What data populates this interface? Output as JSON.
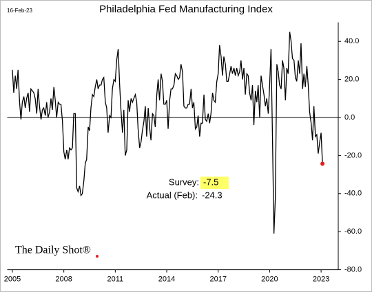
{
  "chart_data": {
    "type": "line",
    "title": "Philadelphia Fed Manufacturing Index",
    "date_label": "16-Feb-23",
    "source": "The Daily Shot®",
    "color": "#000000",
    "last_point_color": "#e02020",
    "survey": {
      "label": "Survey:",
      "value": -7.5,
      "highlight": "#ffff66"
    },
    "actual": {
      "label": "Actual (Feb):",
      "value": -24.3
    },
    "x": [
      2005.0,
      2005.08,
      2005.17,
      2005.25,
      2005.33,
      2005.42,
      2005.5,
      2005.58,
      2005.67,
      2005.75,
      2005.83,
      2005.92,
      2006.0,
      2006.08,
      2006.17,
      2006.25,
      2006.33,
      2006.42,
      2006.5,
      2006.58,
      2006.67,
      2006.75,
      2006.83,
      2006.92,
      2007.0,
      2007.08,
      2007.17,
      2007.25,
      2007.33,
      2007.42,
      2007.5,
      2007.58,
      2007.67,
      2007.75,
      2007.83,
      2007.92,
      2008.0,
      2008.08,
      2008.17,
      2008.25,
      2008.33,
      2008.42,
      2008.5,
      2008.58,
      2008.67,
      2008.75,
      2008.83,
      2008.92,
      2009.0,
      2009.08,
      2009.17,
      2009.25,
      2009.33,
      2009.42,
      2009.5,
      2009.58,
      2009.67,
      2009.75,
      2009.83,
      2009.92,
      2010.0,
      2010.08,
      2010.17,
      2010.25,
      2010.33,
      2010.42,
      2010.5,
      2010.58,
      2010.67,
      2010.75,
      2010.83,
      2010.92,
      2011.0,
      2011.08,
      2011.17,
      2011.25,
      2011.33,
      2011.42,
      2011.5,
      2011.58,
      2011.67,
      2011.75,
      2011.83,
      2011.92,
      2012.0,
      2012.08,
      2012.17,
      2012.25,
      2012.33,
      2012.42,
      2012.5,
      2012.58,
      2012.67,
      2012.75,
      2012.83,
      2012.92,
      2013.0,
      2013.08,
      2013.17,
      2013.25,
      2013.33,
      2013.42,
      2013.5,
      2013.58,
      2013.67,
      2013.75,
      2013.83,
      2013.92,
      2014.0,
      2014.08,
      2014.17,
      2014.25,
      2014.33,
      2014.42,
      2014.5,
      2014.58,
      2014.67,
      2014.75,
      2014.83,
      2014.92,
      2015.0,
      2015.08,
      2015.17,
      2015.25,
      2015.33,
      2015.42,
      2015.5,
      2015.58,
      2015.67,
      2015.75,
      2015.83,
      2015.92,
      2016.0,
      2016.08,
      2016.17,
      2016.25,
      2016.33,
      2016.42,
      2016.5,
      2016.58,
      2016.67,
      2016.75,
      2016.83,
      2016.92,
      2017.0,
      2017.08,
      2017.17,
      2017.25,
      2017.33,
      2017.42,
      2017.5,
      2017.58,
      2017.67,
      2017.75,
      2017.83,
      2017.92,
      2018.0,
      2018.08,
      2018.17,
      2018.25,
      2018.33,
      2018.42,
      2018.5,
      2018.58,
      2018.67,
      2018.75,
      2018.83,
      2018.92,
      2019.0,
      2019.08,
      2019.17,
      2019.25,
      2019.33,
      2019.42,
      2019.5,
      2019.58,
      2019.67,
      2019.75,
      2019.83,
      2019.92,
      2020.0,
      2020.08,
      2020.17,
      2020.25,
      2020.33,
      2020.42,
      2020.5,
      2020.58,
      2020.67,
      2020.75,
      2020.83,
      2020.92,
      2021.0,
      2021.08,
      2021.17,
      2021.25,
      2021.33,
      2021.42,
      2021.5,
      2021.58,
      2021.67,
      2021.75,
      2021.83,
      2021.92,
      2022.0,
      2022.08,
      2022.17,
      2022.25,
      2022.33,
      2022.42,
      2022.5,
      2022.58,
      2022.67,
      2022.75,
      2022.83,
      2022.92,
      2023.0,
      2023.08
    ],
    "values": [
      25,
      13,
      22,
      15,
      25,
      8,
      -1,
      8,
      11,
      5,
      10,
      13,
      3,
      15,
      14,
      13,
      10,
      2,
      15,
      6,
      -1,
      4,
      5,
      1,
      8,
      0,
      3,
      10,
      4,
      16,
      9,
      0,
      8,
      7,
      7,
      -2,
      -18,
      -22,
      -17,
      -22,
      -16,
      -17,
      -16,
      2,
      2,
      -37,
      -39,
      -36,
      -41,
      -40,
      -33,
      -24,
      -22,
      -5,
      -7,
      5,
      12,
      11,
      16,
      20,
      15,
      17,
      17,
      20,
      21,
      8,
      5,
      -8,
      1,
      0,
      15,
      20,
      19,
      30,
      36,
      18,
      4,
      -8,
      4,
      -20,
      -17,
      9,
      3,
      10,
      8,
      10,
      12,
      8,
      -6,
      -16,
      -13,
      -7,
      -2,
      6,
      -10,
      5,
      -5,
      -12,
      2,
      1,
      -5,
      12,
      20,
      9,
      23,
      19,
      7,
      7,
      9,
      -6,
      9,
      15,
      15,
      17,
      23,
      22,
      20,
      21,
      28,
      24,
      6,
      5,
      5,
      7,
      7,
      15,
      5,
      8,
      -6,
      -5,
      1,
      -10,
      -3,
      -3,
      12,
      -1,
      -2,
      2,
      -3,
      2,
      13,
      9,
      8,
      19,
      23,
      38,
      32,
      22,
      32,
      28,
      19,
      19,
      23,
      27,
      23,
      26,
      22,
      26,
      22,
      24,
      30,
      20,
      26,
      12,
      23,
      22,
      13,
      9,
      17,
      -4,
      14,
      8,
      17,
      0,
      22,
      17,
      12,
      6,
      10,
      2,
      17,
      36,
      -13,
      -61,
      -43,
      28,
      24,
      17,
      15,
      30,
      26,
      9,
      26,
      23,
      45,
      40,
      31,
      30,
      21,
      19,
      30,
      23,
      39,
      15,
      23,
      16,
      27,
      17,
      3,
      -3,
      -12,
      6,
      -10,
      -9,
      -19,
      -13,
      -8,
      -24.3
    ],
    "xlim": [
      2004.7,
      2024.0
    ],
    "xticks": [
      2005,
      2008,
      2011,
      2014,
      2017,
      2020,
      2023
    ],
    "ylim": [
      -80,
      50
    ],
    "yticks": [
      {
        "value": 40,
        "label": "40.0"
      },
      {
        "value": 20,
        "label": "20.0"
      },
      {
        "value": 0,
        "label": "0.0"
      },
      {
        "value": -20,
        "label": "-20.0"
      },
      {
        "value": -40,
        "label": "-40.0"
      },
      {
        "value": -60,
        "label": "-60.0"
      },
      {
        "value": -80,
        "label": "-80.0"
      }
    ]
  }
}
